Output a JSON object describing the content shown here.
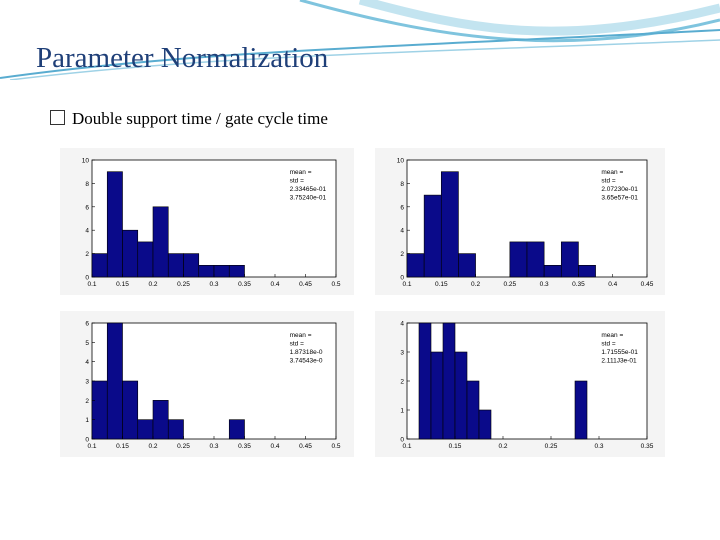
{
  "slide": {
    "title": "Parameter Normalization",
    "bullet_text": "Double support time / gate cycle time",
    "bullet_icon": "square-bullet-icon"
  },
  "colors": {
    "bar_fill": "#0a0a8a",
    "bar_edge": "#000000",
    "title": "#1f3f78"
  },
  "chart_data": [
    {
      "type": "bar",
      "position": "top-left",
      "bin_width": 0.025,
      "bin_starts": [
        0.1,
        0.125,
        0.15,
        0.175,
        0.2,
        0.225,
        0.25,
        0.275,
        0.3,
        0.325,
        0.35,
        0.375,
        0.4,
        0.425
      ],
      "values": [
        2,
        9,
        4,
        3,
        6,
        2,
        2,
        1,
        1,
        1,
        0,
        0,
        0,
        0
      ],
      "xlim": [
        0.1,
        0.5
      ],
      "ylim": [
        0,
        10
      ],
      "xticks": [
        "0.1",
        "0.15",
        "0.2",
        "0.25",
        "0.3",
        "0.35",
        "0.4",
        "0.45",
        "0.5"
      ],
      "yticks": [
        "0",
        "2",
        "4",
        "6",
        "8",
        "10"
      ],
      "annotation": [
        "mean =",
        "std =",
        "2.33465e-01",
        "3.75240e-01"
      ]
    },
    {
      "type": "bar",
      "position": "top-right",
      "bin_width": 0.025,
      "bin_starts": [
        0.1,
        0.125,
        0.15,
        0.175,
        0.2,
        0.225,
        0.25,
        0.275,
        0.3,
        0.325,
        0.35,
        0.375,
        0.4,
        0.425
      ],
      "values": [
        2,
        7,
        9,
        2,
        0,
        0,
        3,
        3,
        1,
        3,
        1,
        0,
        0,
        0
      ],
      "xlim": [
        0.1,
        0.45
      ],
      "ylim": [
        0,
        10
      ],
      "xticks": [
        "0.1",
        "0.15",
        "0.2",
        "0.25",
        "0.3",
        "0.35",
        "0.4",
        "0.45"
      ],
      "yticks": [
        "0",
        "2",
        "4",
        "6",
        "8",
        "10"
      ],
      "annotation": [
        "mean =",
        "std =",
        "2.07230e-01",
        "3.65e57e-01"
      ]
    },
    {
      "type": "bar",
      "position": "bottom-left",
      "bin_width": 0.025,
      "bin_starts": [
        0.1,
        0.125,
        0.15,
        0.175,
        0.2,
        0.225,
        0.25,
        0.275,
        0.3,
        0.325,
        0.35,
        0.375,
        0.4
      ],
      "values": [
        3,
        6,
        3,
        1,
        2,
        1,
        0,
        0,
        0,
        1,
        0,
        0,
        0
      ],
      "xlim": [
        0.1,
        0.5
      ],
      "ylim": [
        0,
        6
      ],
      "xticks": [
        "0.1",
        "0.15",
        "0.2",
        "0.25",
        "0.3",
        "0.35",
        "0.4",
        "0.45",
        "0.5"
      ],
      "yticks": [
        "0",
        "1",
        "2",
        "3",
        "4",
        "5",
        "6"
      ],
      "annotation": [
        "mean =",
        "std =",
        "1.87318e-0",
        "3.74543e-0"
      ]
    },
    {
      "type": "bar",
      "position": "bottom-right",
      "bin_width": 0.0125,
      "bin_starts": [
        0.1,
        0.1125,
        0.125,
        0.1375,
        0.15,
        0.1625,
        0.175,
        0.1875,
        0.2,
        0.2125,
        0.225,
        0.2375,
        0.25,
        0.2625,
        0.275,
        0.2875
      ],
      "values": [
        0,
        4,
        3,
        4,
        3,
        2,
        1,
        0,
        0,
        0,
        0,
        0,
        0,
        0,
        2,
        0
      ],
      "xlim": [
        0.1,
        0.35
      ],
      "ylim": [
        0,
        4
      ],
      "xticks": [
        "0.1",
        "0.15",
        "0.2",
        "0.25",
        "0.3",
        "0.35"
      ],
      "yticks": [
        "0",
        "1",
        "2",
        "3",
        "4"
      ],
      "annotation": [
        "mean =",
        "std =",
        "1.71555e-01",
        "2.111J3e-01"
      ]
    }
  ]
}
